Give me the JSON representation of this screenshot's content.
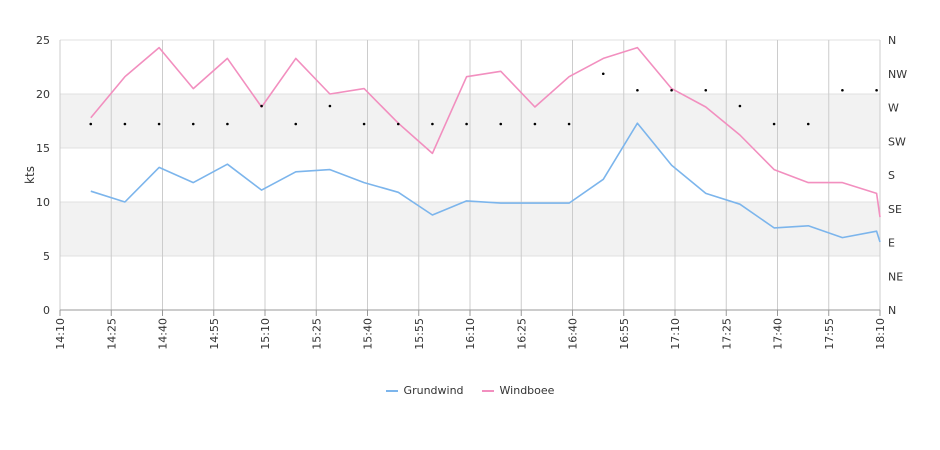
{
  "chart_data": {
    "type": "line",
    "ylabel": "kts",
    "ylim": [
      0,
      25
    ],
    "y_ticks": [
      "0",
      "5",
      "10",
      "15",
      "20",
      "25"
    ],
    "right_axis_labels": [
      "N",
      "NE",
      "E",
      "SE",
      "S",
      "SW",
      "W",
      "NW",
      "N"
    ],
    "xlim": [
      "14:10",
      "18:10"
    ],
    "x_ticks": [
      "14:10",
      "14:25",
      "14:40",
      "14:55",
      "15:10",
      "15:25",
      "15:40",
      "15:55",
      "16:10",
      "16:25",
      "16:40",
      "16:55",
      "17:10",
      "17:25",
      "17:40",
      "17:55",
      "18:10"
    ],
    "x": [
      "14:19",
      "14:29",
      "14:39",
      "14:49",
      "14:59",
      "15:09",
      "15:19",
      "15:29",
      "15:39",
      "15:49",
      "15:59",
      "16:09",
      "16:19",
      "16:29",
      "16:39",
      "16:49",
      "16:59",
      "17:09",
      "17:19",
      "17:29",
      "17:39",
      "17:49",
      "17:59",
      "18:09",
      "18:10"
    ],
    "series": [
      {
        "name": "Grundwind",
        "color": "#7cb5ec",
        "values": [
          11.0,
          10.0,
          13.2,
          11.8,
          13.5,
          11.1,
          12.8,
          13.0,
          11.8,
          10.9,
          8.8,
          10.1,
          9.9,
          9.9,
          9.9,
          12.1,
          17.3,
          13.4,
          10.8,
          9.8,
          7.6,
          7.8,
          6.7,
          7.3,
          6.3
        ]
      },
      {
        "name": "Windboee",
        "color": "#f28fbf",
        "values": [
          17.8,
          21.6,
          24.3,
          20.5,
          23.3,
          18.8,
          23.3,
          20.0,
          20.5,
          17.3,
          14.5,
          21.6,
          22.1,
          18.8,
          21.6,
          23.3,
          24.3,
          20.5,
          18.8,
          16.2,
          13.0,
          11.8,
          11.8,
          10.8,
          8.6
        ]
      }
    ],
    "direction": {
      "x": [
        "14:19",
        "14:29",
        "14:39",
        "14:49",
        "14:59",
        "15:09",
        "15:19",
        "15:29",
        "15:39",
        "15:49",
        "15:59",
        "16:09",
        "16:19",
        "16:29",
        "16:39",
        "16:49",
        "16:59",
        "17:09",
        "17:19",
        "17:29",
        "17:39",
        "17:49",
        "17:59",
        "18:09"
      ],
      "degrees": [
        248,
        248,
        248,
        248,
        248,
        272,
        248,
        272,
        248,
        248,
        248,
        248,
        248,
        248,
        248,
        315,
        293,
        293,
        293,
        272,
        248,
        248,
        293,
        293
      ]
    },
    "bands": [
      [
        5,
        10
      ],
      [
        15,
        20
      ]
    ],
    "grid": true,
    "legend_position": "bottom-center"
  }
}
